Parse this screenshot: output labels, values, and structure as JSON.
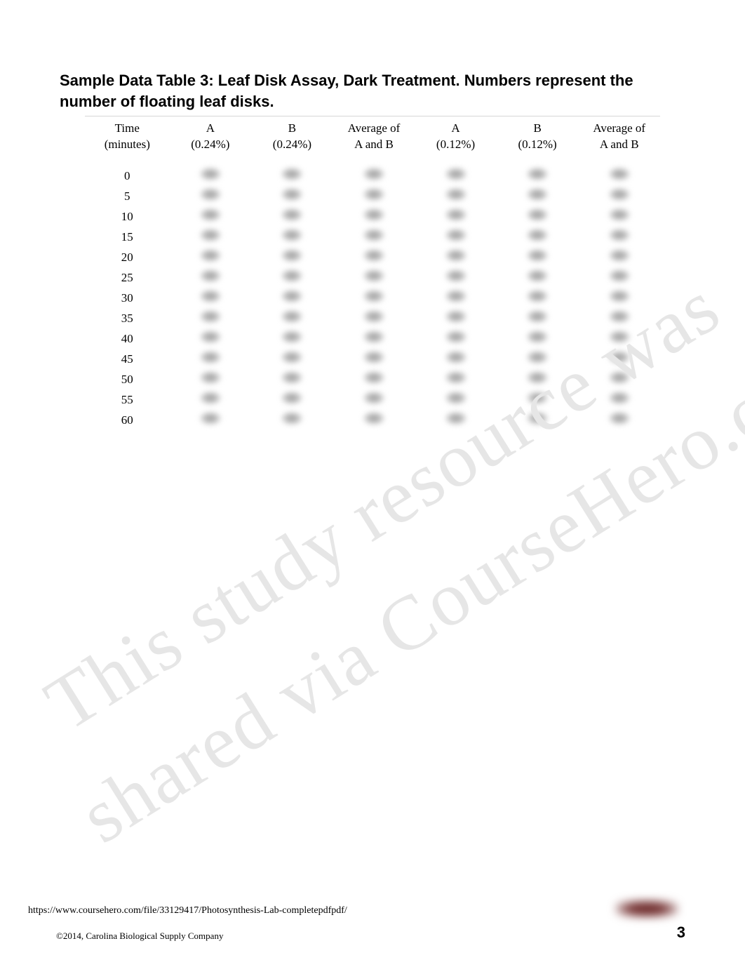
{
  "title": "Sample Data Table 3: Leaf Disk Assay, Dark Treatment. Numbers represent the number of floating leaf disks.",
  "table": {
    "columns": [
      {
        "line1": "Time",
        "line2": "(minutes)"
      },
      {
        "line1": "A",
        "line2": "(0.24%)"
      },
      {
        "line1": "B",
        "line2": "(0.24%)"
      },
      {
        "line1": "Average of",
        "line2": "A and B"
      },
      {
        "line1": "A",
        "line2": "(0.12%)"
      },
      {
        "line1": "B",
        "line2": "(0.12%)"
      },
      {
        "line1": "Average of",
        "line2": "A and B"
      }
    ],
    "time_values": [
      "0",
      "5",
      "10",
      "15",
      "20",
      "25",
      "30",
      "35",
      "40",
      "45",
      "50",
      "55",
      "60"
    ]
  },
  "watermark": {
    "line1": "This study resource was",
    "line2": "shared via CourseHero.com"
  },
  "footer": {
    "url": "https://www.coursehero.com/file/33129417/Photosynthesis-Lab-completepdfpdf/",
    "copyright": "©2014, Carolina Biological Supply Company",
    "page_number": "3"
  },
  "colors": {
    "background": "#ffffff",
    "text": "#000000",
    "rule": "#d6d6d6",
    "watermark": "#e6e6e6",
    "blur_gray": "#9a9a9a",
    "blur_red": "#6d2a2a"
  }
}
